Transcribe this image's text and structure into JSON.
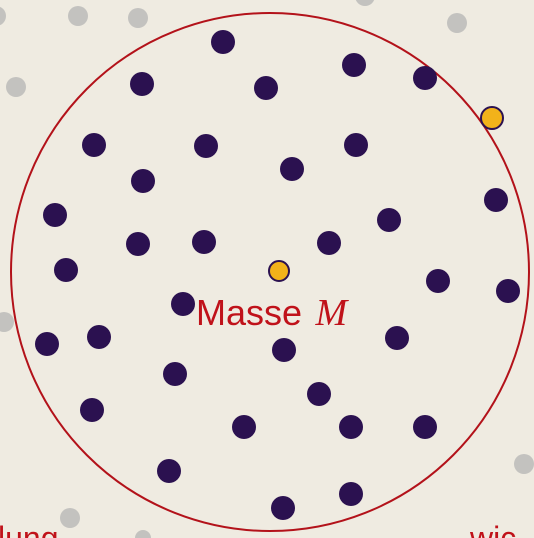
{
  "diagram": {
    "mass_label": "Masse",
    "mass_symbol": "M",
    "edge_text_left": "lung",
    "edge_text_right": "wic",
    "colors": {
      "background": "#efebe1",
      "boundary_circle": "#b3121a",
      "inner_dot": "#2b1150",
      "outer_dot": "#c3c2bf",
      "highlight_dot": "#f2b21a",
      "label_text": "#c0121a"
    }
  }
}
